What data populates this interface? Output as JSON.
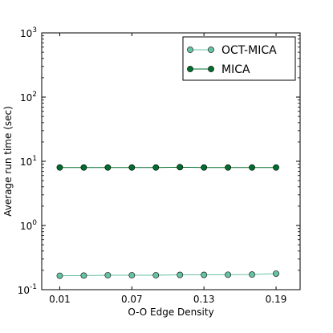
{
  "chart_data": {
    "type": "line",
    "xlabel": "O-O Edge Density",
    "ylabel": "Average run time (sec)",
    "x": [
      0.01,
      0.03,
      0.05,
      0.07,
      0.09,
      0.11,
      0.13,
      0.15,
      0.17,
      0.19
    ],
    "xlim": [
      -0.005,
      0.21
    ],
    "xticks": [
      0.01,
      0.07,
      0.13,
      0.19
    ],
    "xtick_labels": [
      "0.01",
      "0.07",
      "0.13",
      "0.19"
    ],
    "yscale": "log",
    "ylim": [
      0.1,
      1000
    ],
    "yticks": [
      {
        "value": 0.1,
        "base": "10",
        "exp": "-1"
      },
      {
        "value": 1,
        "base": "10",
        "exp": "0"
      },
      {
        "value": 10,
        "base": "10",
        "exp": "1"
      },
      {
        "value": 100,
        "base": "10",
        "exp": "2"
      },
      {
        "value": 1000,
        "base": "10",
        "exp": "3"
      }
    ],
    "grid": false,
    "legend_position": "top-right",
    "series": [
      {
        "name": "OCT-MICA",
        "color": "#66c2a4",
        "values": [
          0.165,
          0.166,
          0.168,
          0.168,
          0.168,
          0.17,
          0.17,
          0.171,
          0.172,
          0.178
        ]
      },
      {
        "name": "MICA",
        "color": "#006d2c",
        "values": [
          8.0,
          8.0,
          8.0,
          8.0,
          8.0,
          8.1,
          8.0,
          8.0,
          8.0,
          8.0
        ]
      }
    ]
  }
}
